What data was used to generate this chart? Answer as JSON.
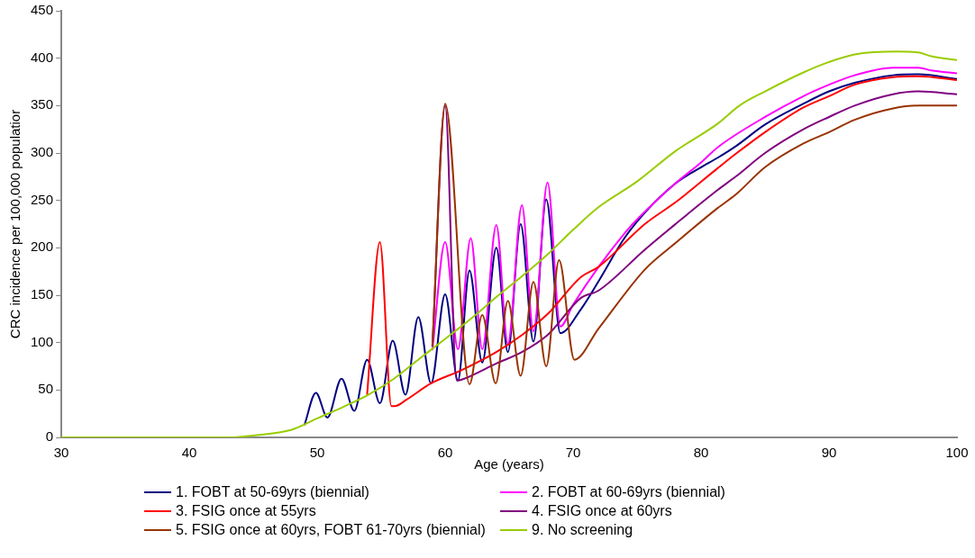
{
  "chart_data": {
    "type": "line",
    "xlabel": "Age (years)",
    "ylabel": "CRC incidence per 100,000 populatior",
    "xlim": [
      30,
      100
    ],
    "xticks": [
      30,
      40,
      50,
      60,
      70,
      80,
      90,
      100
    ],
    "ylim": [
      0,
      450
    ],
    "yticks": [
      0,
      50,
      100,
      150,
      200,
      250,
      300,
      350,
      400,
      450
    ],
    "grid": false,
    "legend": "bottom",
    "marker": "none",
    "line_style": "solid",
    "series": [
      {
        "name": "1. FOBT at 50-69yrs (biennial)",
        "color": "#000080",
        "x": [
          49,
          49.9,
          50.8,
          51.9,
          52.9,
          53.9,
          54.9,
          55.9,
          56.9,
          57.9,
          58.9,
          60,
          61,
          61.9,
          62.9,
          64,
          64.9,
          65.9,
          66.9,
          67.9,
          69,
          70.6,
          72,
          74,
          75.6,
          78,
          80,
          81.3,
          82.7,
          85,
          88,
          90,
          92,
          95,
          97,
          100
        ],
        "values": [
          13,
          47,
          21,
          62,
          28,
          82,
          36,
          102,
          45,
          127,
          57,
          151,
          60,
          176,
          79,
          200,
          90,
          225,
          101,
          251,
          110,
          135,
          165,
          210,
          237,
          268,
          285,
          295,
          307,
          330,
          352,
          365,
          374,
          382,
          383,
          378
        ]
      },
      {
        "name": "2. FOBT at 60-69yrs (biennial)",
        "color": "#ff00ff",
        "x": [
          59,
          60,
          61,
          62,
          62.9,
          64,
          64.9,
          66,
          66.9,
          68,
          69,
          70,
          72,
          74,
          75,
          78,
          80,
          81.3,
          85,
          88,
          90,
          92,
          95,
          97,
          98,
          100
        ],
        "values": [
          92,
          206,
          93,
          210,
          93,
          224,
          99,
          245,
          112,
          269,
          117,
          140,
          180,
          215,
          230,
          268,
          290,
          306,
          338,
          360,
          372,
          382,
          390,
          390,
          387,
          384
        ]
      },
      {
        "name": "3. FSIG once at 55yrs",
        "color": "#ff0000",
        "x": [
          53.9,
          54.9,
          55.8,
          56.05,
          57,
          58.9,
          61.3,
          64,
          66,
          68,
          70.6,
          72,
          75.6,
          78,
          81.3,
          82.7,
          85,
          88,
          90,
          92,
          95,
          97,
          100
        ],
        "values": [
          45,
          206,
          33,
          33,
          40,
          57,
          71,
          90,
          108,
          130,
          169,
          180,
          225,
          248,
          284,
          299,
          322,
          348,
          360,
          372,
          380,
          381,
          377
        ]
      },
      {
        "name": "4. FSIG once at 60yrs",
        "color": "#800080",
        "x": [
          59,
          60,
          60.9,
          61.3,
          64,
          66,
          68,
          70.6,
          72,
          75.6,
          78,
          81.3,
          82.7,
          85,
          88,
          90,
          92,
          95,
          97,
          100
        ],
        "values": [
          96,
          350,
          60,
          61,
          78,
          90,
          108,
          147,
          155,
          198,
          225,
          261,
          275,
          300,
          325,
          338,
          350,
          362,
          365,
          362
        ]
      },
      {
        "name": "5. FSIG once at 60yrs, FOBT 61-70yrs (biennial)",
        "color": "#993300",
        "x": [
          59,
          60,
          61.9,
          62.9,
          63.95,
          64.9,
          65.9,
          66.9,
          67.9,
          68.9,
          70.1,
          72,
          75.6,
          78,
          81.3,
          82.7,
          85,
          88,
          90,
          92,
          95,
          97,
          100
        ],
        "values": [
          96,
          352,
          56,
          129,
          57,
          144,
          65,
          164,
          75,
          187,
          82,
          115,
          177,
          205,
          242,
          256,
          285,
          310,
          322,
          335,
          347,
          350,
          350
        ]
      },
      {
        "name": "9. No screening",
        "color": "#99cc00",
        "x": [
          30,
          43,
          45,
          48,
          50,
          52,
          54,
          56,
          58,
          60,
          62,
          64,
          66,
          68,
          70,
          72,
          75,
          78,
          81.3,
          83,
          85,
          88,
          90,
          92,
          95.3,
          97,
          98,
          100
        ],
        "values": [
          0,
          0,
          2,
          8,
          20,
          32,
          45,
          62,
          83,
          104,
          125,
          148,
          170,
          193,
          219,
          243,
          270,
          302,
          331,
          350,
          365,
          385,
          396,
          404,
          407,
          406,
          402,
          398
        ]
      }
    ]
  }
}
